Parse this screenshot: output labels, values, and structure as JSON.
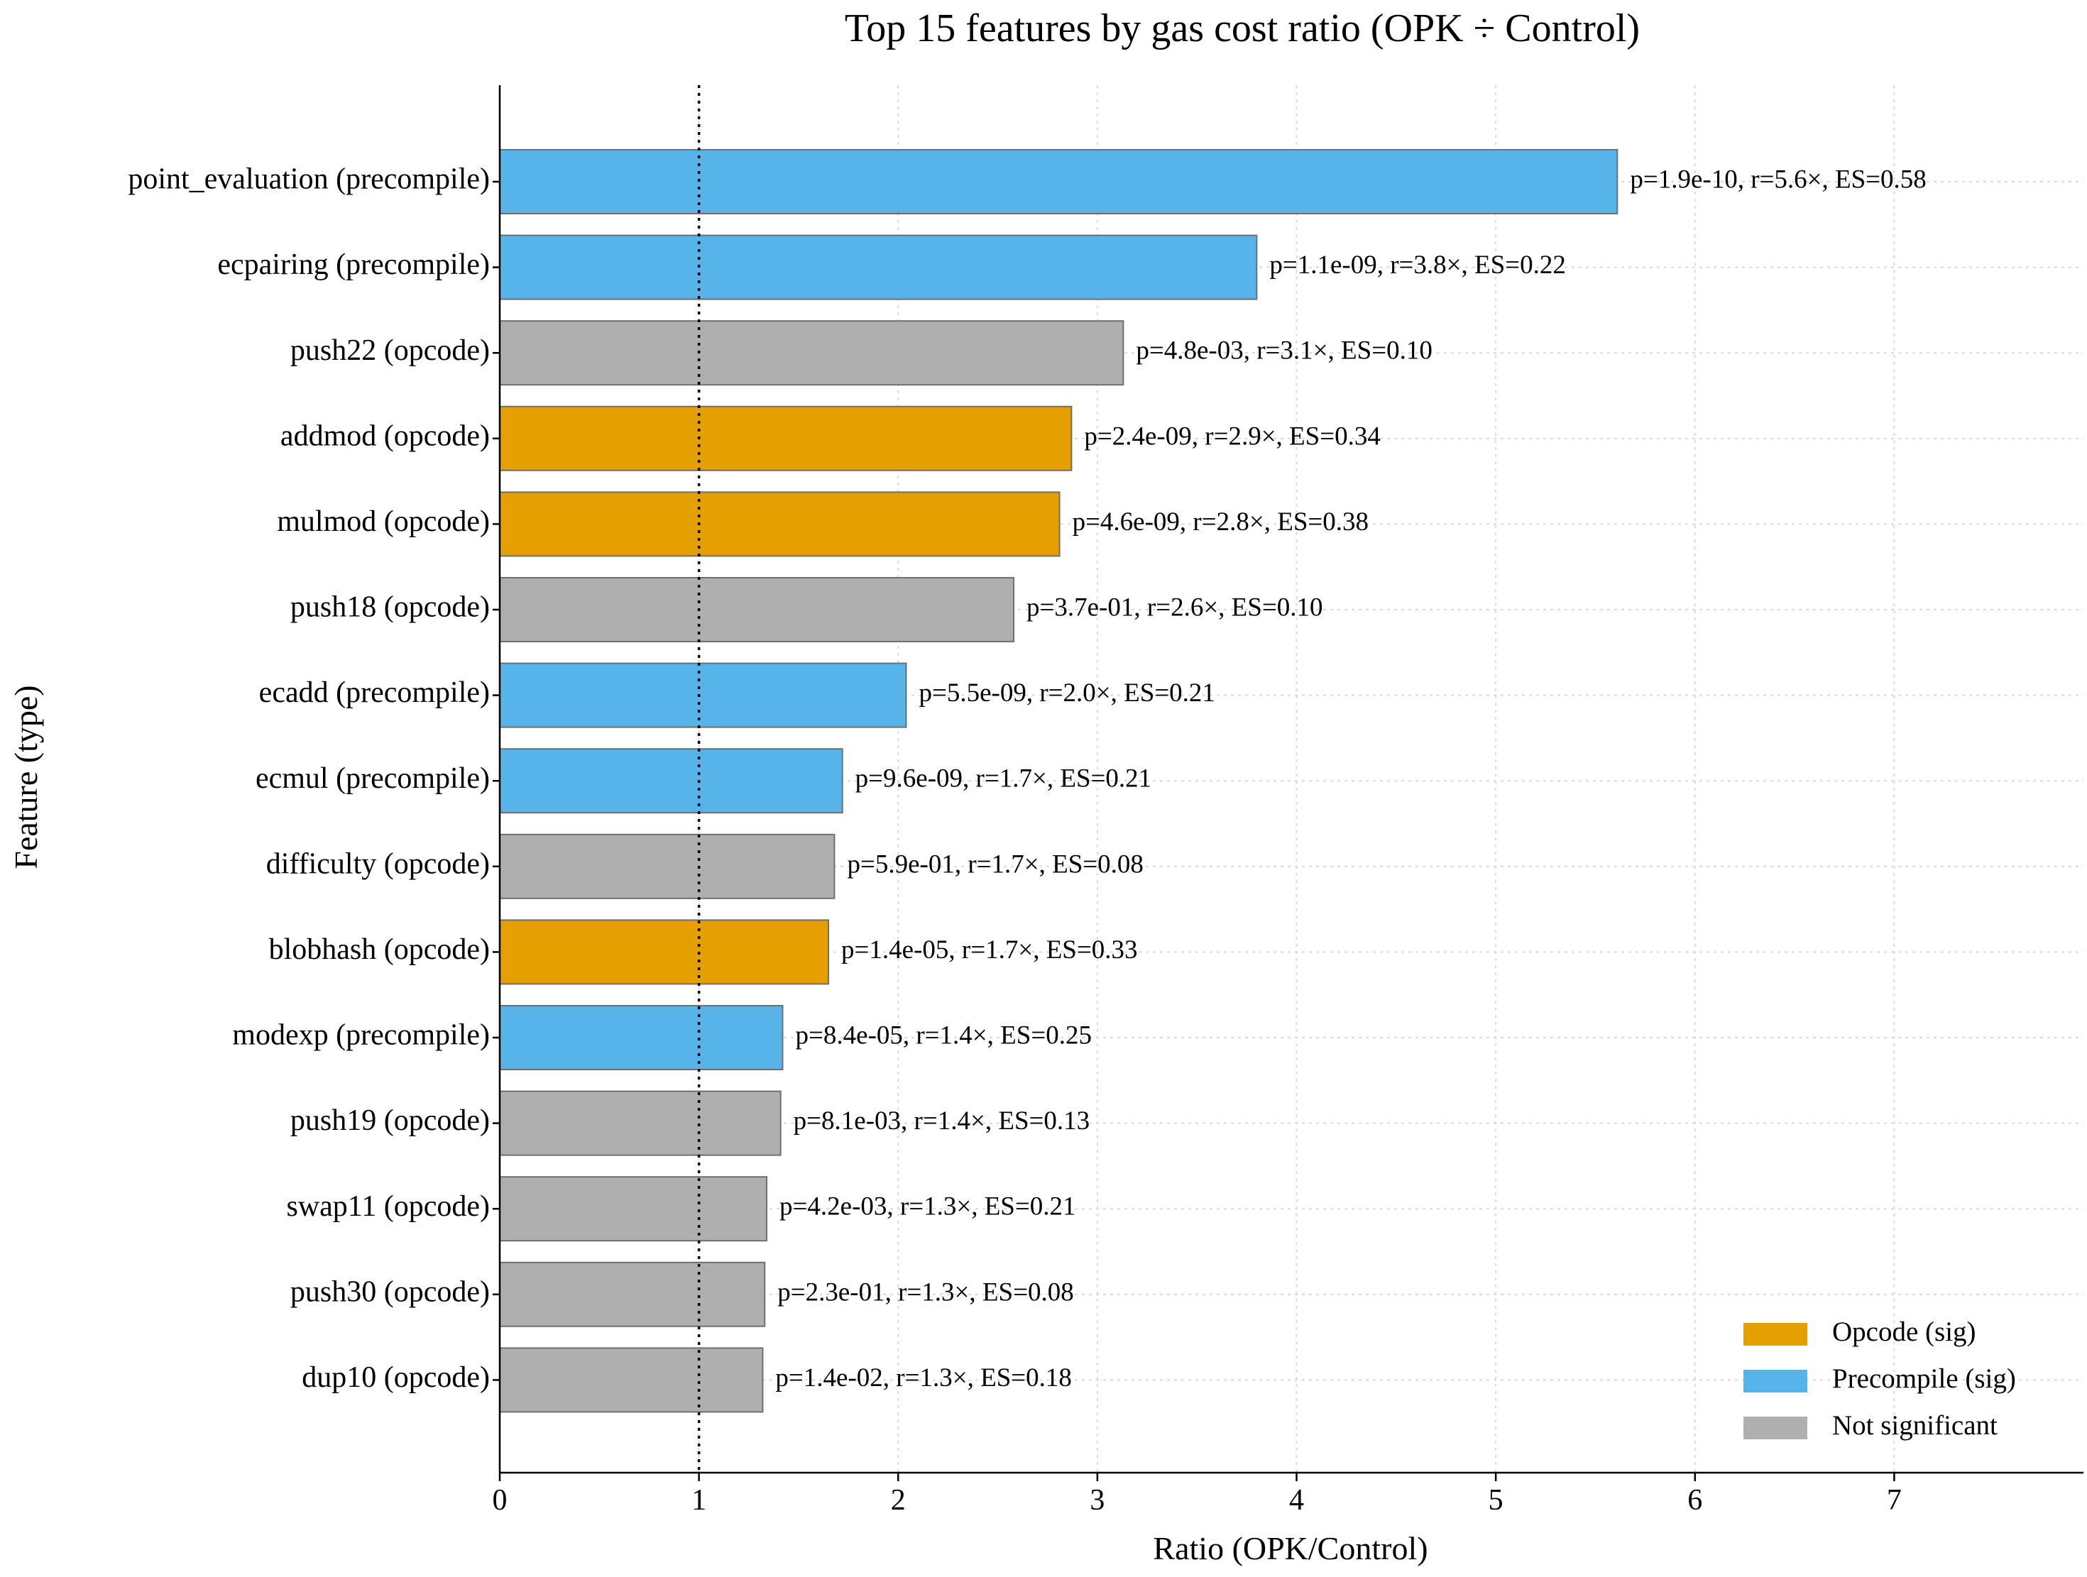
{
  "chart_data": {
    "type": "bar",
    "orientation": "horizontal",
    "title": "Top 15 features by gas cost ratio (OPK ÷ Control)",
    "xlabel": "Ratio (OPK/Control)",
    "ylabel": "Feature (type)",
    "xlim": [
      0,
      7.95
    ],
    "xticks": [
      0,
      1,
      2,
      3,
      4,
      5,
      6,
      7
    ],
    "grid": true,
    "reference_line": {
      "x": 1,
      "style": "dotted"
    },
    "legend": {
      "position": "bottom-right",
      "entries": [
        {
          "label": "Opcode (sig)",
          "color": "#E69F00"
        },
        {
          "label": "Precompile (sig)",
          "color": "#56B4E9"
        },
        {
          "label": "Not significant",
          "color": "#AFAFAF"
        }
      ]
    },
    "colors": {
      "opcode_sig": "#E69F00",
      "precompile_sig": "#56B4E9",
      "not_significant": "#AFAFAF"
    },
    "bars": [
      {
        "label": "point_evaluation (precompile)",
        "value": 5.61,
        "group": "precompile_sig",
        "annotation": "p=1.9e-10, r=5.6×, ES=0.58"
      },
      {
        "label": "ecpairing (precompile)",
        "value": 3.8,
        "group": "precompile_sig",
        "annotation": "p=1.1e-09, r=3.8×, ES=0.22"
      },
      {
        "label": "push22 (opcode)",
        "value": 3.13,
        "group": "not_significant",
        "annotation": "p=4.8e-03, r=3.1×, ES=0.10"
      },
      {
        "label": "addmod (opcode)",
        "value": 2.87,
        "group": "opcode_sig",
        "annotation": "p=2.4e-09, r=2.9×, ES=0.34"
      },
      {
        "label": "mulmod (opcode)",
        "value": 2.81,
        "group": "opcode_sig",
        "annotation": "p=4.6e-09, r=2.8×, ES=0.38"
      },
      {
        "label": "push18 (opcode)",
        "value": 2.58,
        "group": "not_significant",
        "annotation": "p=3.7e-01, r=2.6×, ES=0.10"
      },
      {
        "label": "ecadd (precompile)",
        "value": 2.04,
        "group": "precompile_sig",
        "annotation": "p=5.5e-09, r=2.0×, ES=0.21"
      },
      {
        "label": "ecmul (precompile)",
        "value": 1.72,
        "group": "precompile_sig",
        "annotation": "p=9.6e-09, r=1.7×, ES=0.21"
      },
      {
        "label": "difficulty (opcode)",
        "value": 1.68,
        "group": "not_significant",
        "annotation": "p=5.9e-01, r=1.7×, ES=0.08"
      },
      {
        "label": "blobhash (opcode)",
        "value": 1.65,
        "group": "opcode_sig",
        "annotation": "p=1.4e-05, r=1.7×, ES=0.33"
      },
      {
        "label": "modexp (precompile)",
        "value": 1.42,
        "group": "precompile_sig",
        "annotation": "p=8.4e-05, r=1.4×, ES=0.25"
      },
      {
        "label": "push19 (opcode)",
        "value": 1.41,
        "group": "not_significant",
        "annotation": "p=8.1e-03, r=1.4×, ES=0.13"
      },
      {
        "label": "swap11 (opcode)",
        "value": 1.34,
        "group": "not_significant",
        "annotation": "p=4.2e-03, r=1.3×, ES=0.21"
      },
      {
        "label": "push30 (opcode)",
        "value": 1.33,
        "group": "not_significant",
        "annotation": "p=2.3e-01, r=1.3×, ES=0.08"
      },
      {
        "label": "dup10 (opcode)",
        "value": 1.32,
        "group": "not_significant",
        "annotation": "p=1.4e-02, r=1.3×, ES=0.18"
      }
    ]
  }
}
